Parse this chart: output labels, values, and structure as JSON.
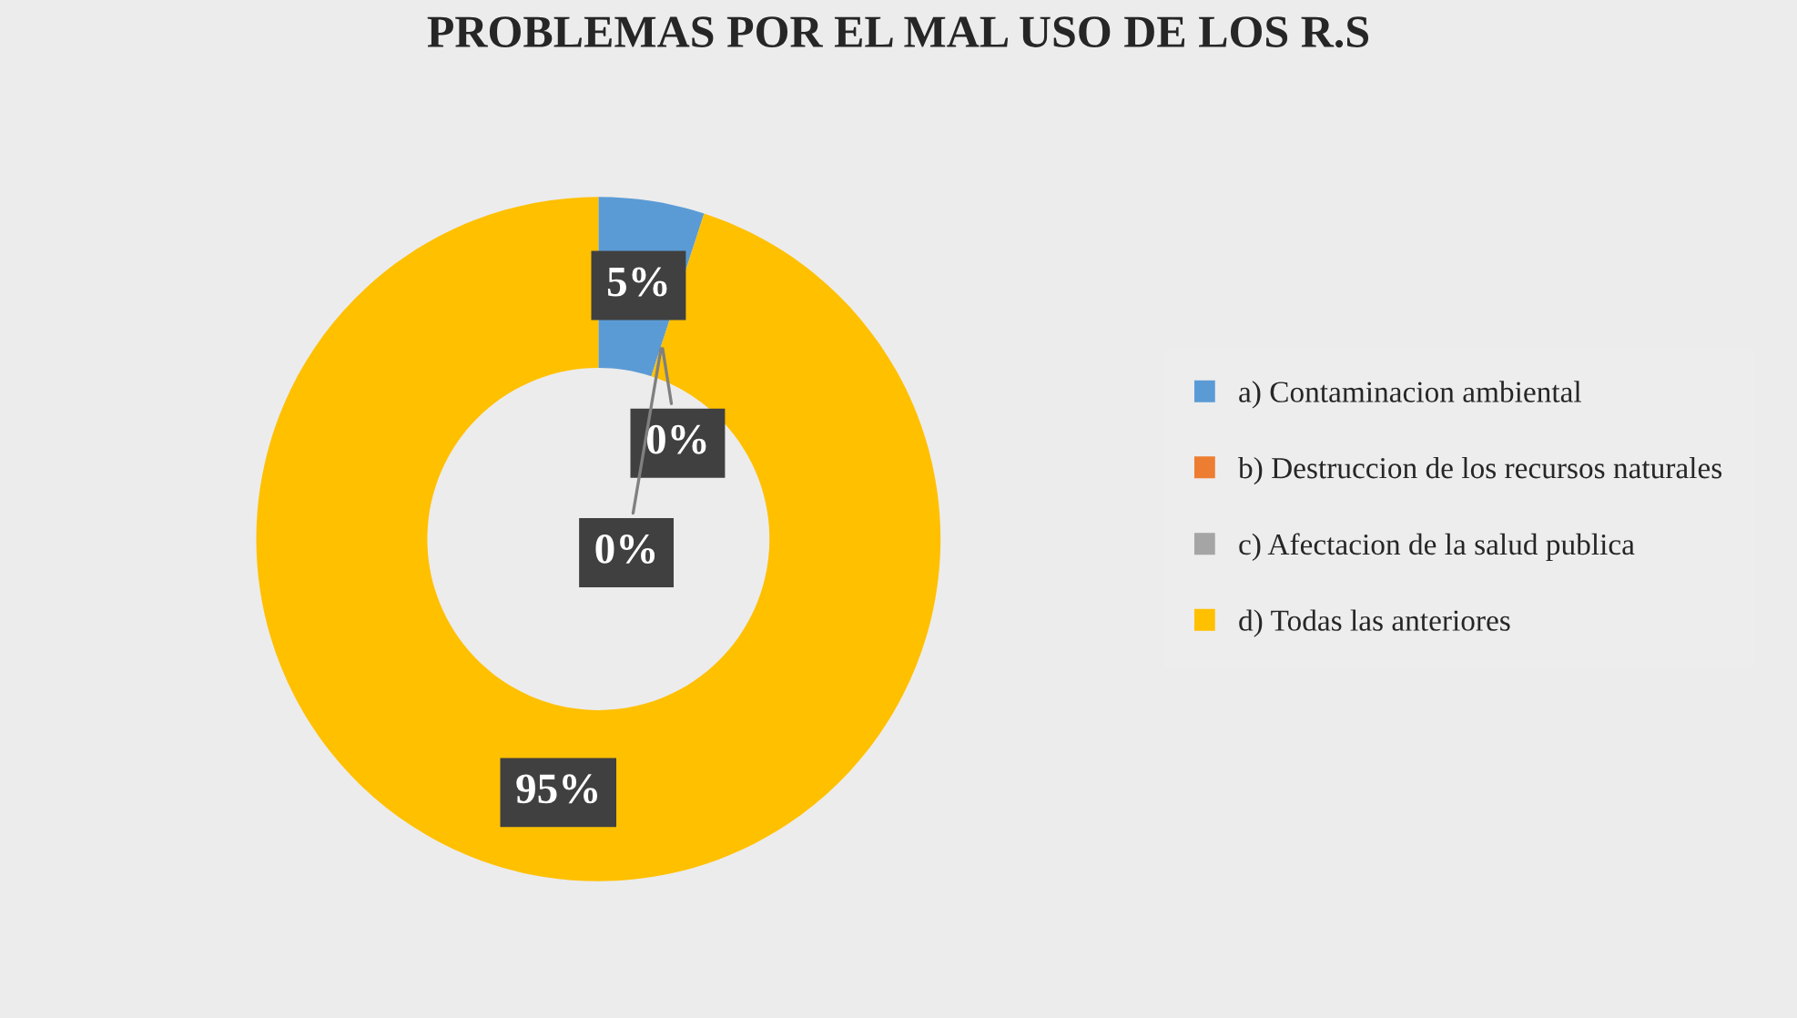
{
  "chart_data": {
    "type": "donut",
    "title": "PROBLEMAS POR EL MAL USO DE LOS R.S",
    "categories": [
      "a) Contaminacion ambiental",
      "b) Destruccion de los recursos naturales",
      "c) Afectacion de la salud publica",
      "d) Todas las anteriores"
    ],
    "values": [
      5,
      0,
      0,
      95
    ],
    "colors": [
      "#5b9bd5",
      "#ed7d31",
      "#a5a5a5",
      "#ffc000"
    ],
    "value_labels": [
      "5%",
      "0%",
      "0%",
      "95%"
    ],
    "legend": "right"
  }
}
